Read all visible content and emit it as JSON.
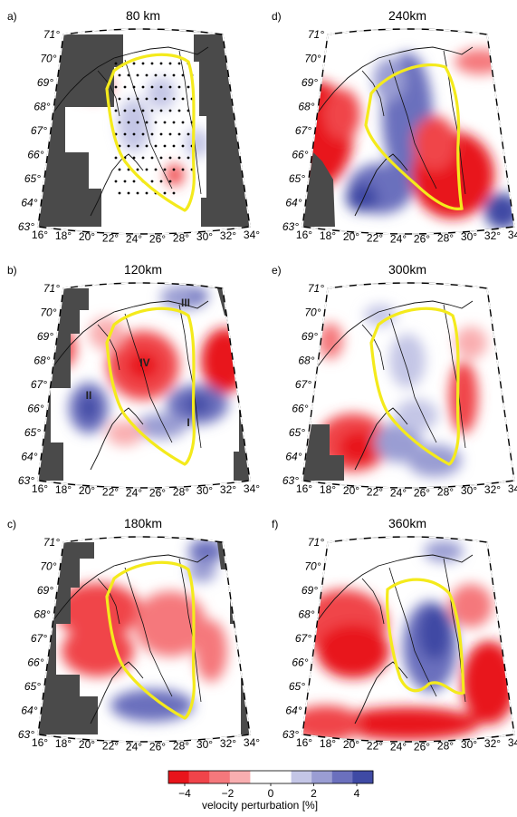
{
  "panels": [
    {
      "letter": "a)",
      "depth": "80 km",
      "lats": [
        "71°",
        "70°",
        "69°",
        "68°",
        "67°",
        "66°",
        "65°",
        "64°",
        "63°"
      ],
      "lons": [
        "16°",
        "18°",
        "20°",
        "22°",
        "24°",
        "26°",
        "28°",
        "30°",
        "32°",
        "34°"
      ],
      "region_labels": []
    },
    {
      "letter": "d)",
      "depth": "240km",
      "lats": [
        "71°",
        "70°",
        "69°",
        "68°",
        "67°",
        "66°",
        "65°",
        "64°",
        "63°"
      ],
      "lons": [
        "16°",
        "18°",
        "20°",
        "22°",
        "24°",
        "26°",
        "28°",
        "30°",
        "32°",
        "34°"
      ],
      "region_labels": []
    },
    {
      "letter": "b)",
      "depth": "120km",
      "lats": [
        "71°",
        "70°",
        "69°",
        "68°",
        "67°",
        "66°",
        "65°",
        "64°",
        "63°"
      ],
      "lons": [
        "16°",
        "18°",
        "20°",
        "22°",
        "24°",
        "26°",
        "28°",
        "30°",
        "32°",
        "34°"
      ],
      "region_labels": [
        "III",
        "IV",
        "II",
        "I"
      ]
    },
    {
      "letter": "e)",
      "depth": "300km",
      "lats": [
        "71°",
        "70°",
        "69°",
        "68°",
        "67°",
        "66°",
        "65°",
        "64°",
        "63°"
      ],
      "lons": [
        "16°",
        "18°",
        "20°",
        "22°",
        "24°",
        "26°",
        "28°",
        "30°",
        "32°",
        "34°"
      ],
      "region_labels": []
    },
    {
      "letter": "c)",
      "depth": "180km",
      "lats": [
        "71°",
        "70°",
        "69°",
        "68°",
        "67°",
        "66°",
        "65°",
        "64°",
        "63°"
      ],
      "lons": [
        "16°",
        "18°",
        "20°",
        "22°",
        "24°",
        "26°",
        "28°",
        "30°",
        "32°",
        "34°"
      ],
      "region_labels": []
    },
    {
      "letter": "f)",
      "depth": "360km",
      "lats": [
        "71°",
        "70°",
        "69°",
        "68°",
        "67°",
        "66°",
        "65°",
        "64°",
        "63°"
      ],
      "lons": [
        "16°",
        "18°",
        "20°",
        "22°",
        "24°",
        "26°",
        "28°",
        "30°",
        "32°",
        "34°"
      ],
      "region_labels": []
    }
  ],
  "colorbar": {
    "ticks": [
      "−4",
      "−2",
      "0",
      "2",
      "4"
    ],
    "label": "velocity perturbation [%]",
    "colors": [
      "#e8141b",
      "#f0444a",
      "#f5787c",
      "#f9aeb0",
      "#ffffff",
      "#ffffff",
      "#c4c6e6",
      "#9a9dd3",
      "#6b70bd",
      "#3f4aa4"
    ]
  },
  "colors": {
    "no_data": "#4a4a4a",
    "craton_outline": "#f4ea1c",
    "slow": "#e8141b",
    "fast": "#3f4aa4"
  }
}
